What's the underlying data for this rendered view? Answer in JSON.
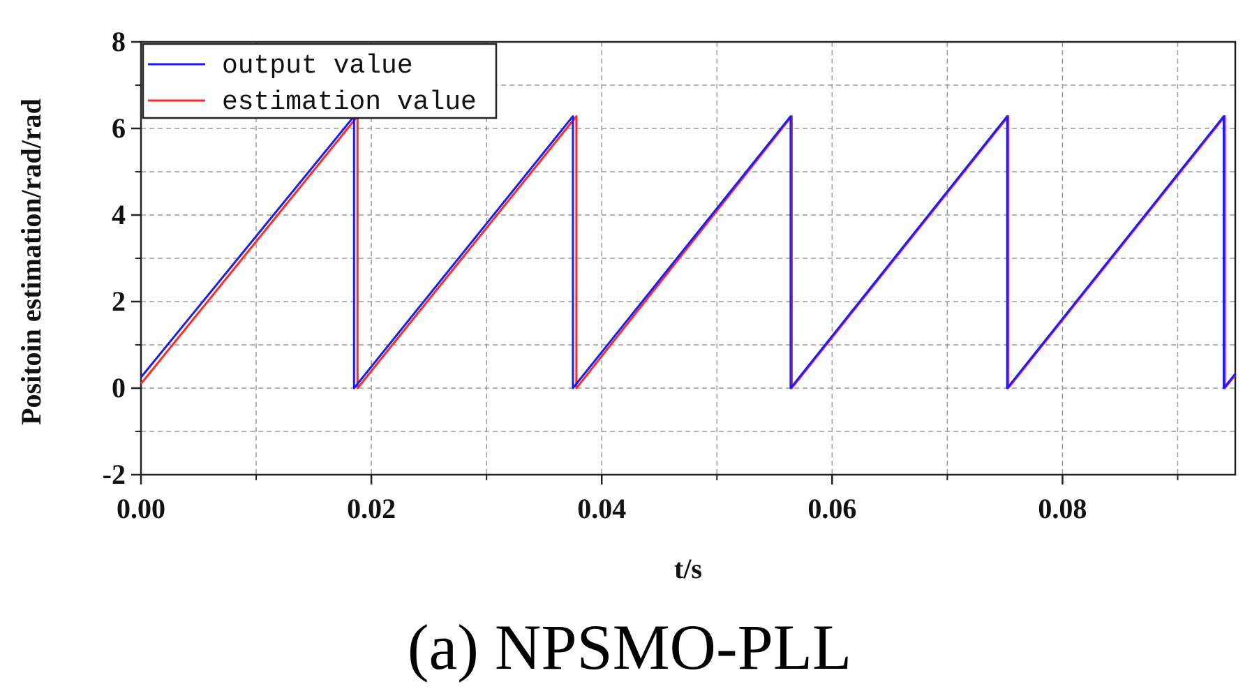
{
  "chart_data": {
    "type": "line",
    "caption": "(a) NPSMO-PLL",
    "xlabel": "t/s",
    "ylabel": "Positoin estimation/rad/rad",
    "xlim": [
      0,
      0.095
    ],
    "ylim": [
      -2,
      8
    ],
    "xticks": [
      "0.00",
      "0.02",
      "0.04",
      "0.06",
      "0.08"
    ],
    "xtick_values": [
      0,
      0.02,
      0.04,
      0.06,
      0.08
    ],
    "yticks": [
      "-2",
      "0",
      "2",
      "4",
      "6",
      "8"
    ],
    "ytick_values": [
      -2,
      0,
      2,
      4,
      6,
      8
    ],
    "grid": true,
    "legend_position": "top-left",
    "series": [
      {
        "name": "output value",
        "color": "#1a1aff",
        "x": [
          0,
          0.0185,
          0.0185,
          0.0375,
          0.0375,
          0.0564,
          0.0564,
          0.0752,
          0.0752,
          0.094,
          0.094,
          0.095
        ],
        "y": [
          0.25,
          6.28,
          0.0,
          6.28,
          0.0,
          6.28,
          0.0,
          6.28,
          0.0,
          6.28,
          0.0,
          0.33
        ]
      },
      {
        "name": "estimation value",
        "color": "#ff2a2a",
        "x": [
          0,
          0.0188,
          0.0188,
          0.0378,
          0.0378,
          0.0565,
          0.0565,
          0.0753,
          0.0753,
          0.0941,
          0.0941,
          0.095
        ],
        "y": [
          0.1,
          6.28,
          0.0,
          6.28,
          0.0,
          6.28,
          0.0,
          6.28,
          0.0,
          6.28,
          0.0,
          0.3
        ]
      }
    ]
  }
}
